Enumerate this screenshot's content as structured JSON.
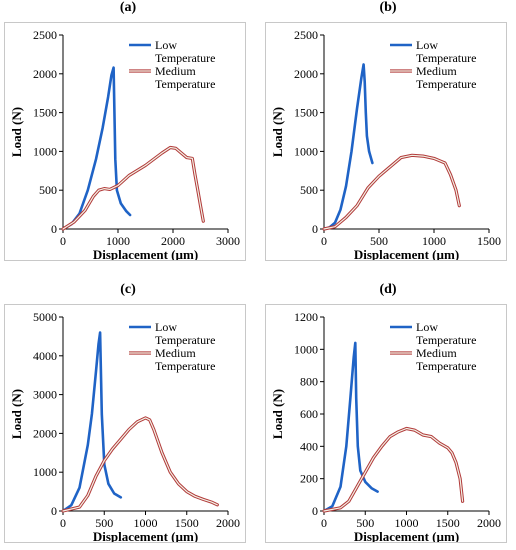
{
  "panels": [
    {
      "label": "(a)"
    },
    {
      "label": "(b)"
    },
    {
      "label": "(c)"
    },
    {
      "label": "(d)"
    }
  ],
  "colors": {
    "low": "#1f63c6",
    "medium_outer": "#b23a3a",
    "medium_inner": "#f2f2e6"
  },
  "chart_data": [
    {
      "type": "line",
      "xlabel": "Displacement (µm)",
      "ylabel": "Load (N)",
      "xlim": [
        0,
        3000
      ],
      "ylim": [
        0,
        2500
      ],
      "xticks": [
        0,
        1000,
        2000,
        3000
      ],
      "yticks": [
        0,
        500,
        1000,
        1500,
        2000,
        2500
      ],
      "legend": "top-right",
      "series": [
        {
          "name": "Low Temperature",
          "color": "#1f63c6",
          "style": "solid",
          "x": [
            0,
            150,
            300,
            450,
            600,
            720,
            820,
            880,
            920,
            950,
            980,
            1050,
            1150,
            1220
          ],
          "y": [
            0,
            60,
            200,
            500,
            900,
            1300,
            1700,
            1980,
            2080,
            900,
            500,
            330,
            230,
            180
          ]
        },
        {
          "name": "Medium Temperature",
          "color": "#b23a3a",
          "style": "double",
          "x": [
            0,
            200,
            400,
            550,
            650,
            750,
            850,
            1000,
            1200,
            1500,
            1800,
            1950,
            2050,
            2150,
            2250,
            2350,
            2400,
            2450,
            2500,
            2550
          ],
          "y": [
            0,
            90,
            240,
            420,
            500,
            520,
            510,
            560,
            690,
            820,
            980,
            1050,
            1040,
            980,
            920,
            910,
            700,
            500,
            300,
            100
          ]
        }
      ]
    },
    {
      "type": "line",
      "xlabel": "Displacement (µm)",
      "ylabel": "Load (N)",
      "xlim": [
        0,
        1500
      ],
      "ylim": [
        0,
        2500
      ],
      "xticks": [
        0,
        500,
        1000,
        1500
      ],
      "yticks": [
        0,
        500,
        1000,
        1500,
        2000,
        2500
      ],
      "legend": "top-right",
      "series": [
        {
          "name": "Low Temperature",
          "color": "#1f63c6",
          "style": "solid",
          "x": [
            0,
            50,
            100,
            150,
            200,
            250,
            300,
            340,
            360,
            370,
            380,
            390,
            410,
            440
          ],
          "y": [
            0,
            20,
            80,
            250,
            550,
            1000,
            1550,
            1950,
            2120,
            1900,
            1500,
            1200,
            1000,
            850
          ]
        },
        {
          "name": "Medium Temperature",
          "color": "#b23a3a",
          "style": "double",
          "x": [
            0,
            100,
            200,
            300,
            400,
            500,
            600,
            700,
            800,
            900,
            1000,
            1050,
            1100,
            1150,
            1200,
            1230
          ],
          "y": [
            0,
            30,
            150,
            300,
            530,
            680,
            800,
            920,
            950,
            940,
            910,
            880,
            850,
            700,
            500,
            300
          ]
        }
      ]
    },
    {
      "type": "line",
      "xlabel": "Displacement (µm)",
      "ylabel": "Load (N)",
      "xlim": [
        0,
        2000
      ],
      "ylim": [
        0,
        5000
      ],
      "xticks": [
        0,
        500,
        1000,
        1500,
        2000
      ],
      "yticks": [
        0,
        1000,
        2000,
        3000,
        4000,
        5000
      ],
      "legend": "top-right",
      "series": [
        {
          "name": "Low Temperature",
          "color": "#1f63c6",
          "style": "solid",
          "x": [
            0,
            100,
            200,
            300,
            350,
            400,
            430,
            450,
            470,
            500,
            550,
            620,
            700
          ],
          "y": [
            0,
            150,
            600,
            1700,
            2500,
            3600,
            4300,
            4600,
            2500,
            1200,
            700,
            450,
            350
          ]
        },
        {
          "name": "Medium Temperature",
          "color": "#b23a3a",
          "style": "double",
          "x": [
            0,
            200,
            300,
            400,
            500,
            600,
            700,
            800,
            900,
            1000,
            1050,
            1100,
            1200,
            1300,
            1400,
            1500,
            1600,
            1700,
            1800,
            1870
          ],
          "y": [
            0,
            100,
            400,
            900,
            1300,
            1600,
            1850,
            2100,
            2300,
            2400,
            2350,
            2100,
            1500,
            1000,
            700,
            500,
            380,
            300,
            230,
            160
          ]
        }
      ]
    },
    {
      "type": "line",
      "xlabel": "Displacement (µm)",
      "ylabel": "Load (N)",
      "xlim": [
        0,
        2000
      ],
      "ylim": [
        0,
        1200
      ],
      "xticks": [
        0,
        500,
        1000,
        1500,
        2000
      ],
      "yticks": [
        0,
        200,
        400,
        600,
        800,
        1000,
        1200
      ],
      "legend": "top-right",
      "series": [
        {
          "name": "Low Temperature",
          "color": "#1f63c6",
          "style": "solid",
          "x": [
            0,
            100,
            200,
            270,
            320,
            360,
            380,
            390,
            410,
            440,
            500,
            580,
            650
          ],
          "y": [
            0,
            30,
            150,
            400,
            700,
            950,
            1040,
            700,
            400,
            250,
            180,
            140,
            120
          ]
        },
        {
          "name": "Medium Temperature",
          "color": "#b23a3a",
          "style": "double",
          "x": [
            0,
            200,
            300,
            400,
            500,
            600,
            700,
            800,
            900,
            1000,
            1100,
            1200,
            1300,
            1400,
            1500,
            1550,
            1600,
            1650,
            1680
          ],
          "y": [
            0,
            20,
            60,
            150,
            240,
            330,
            400,
            460,
            490,
            510,
            500,
            470,
            460,
            420,
            390,
            360,
            300,
            200,
            60
          ]
        }
      ]
    }
  ]
}
